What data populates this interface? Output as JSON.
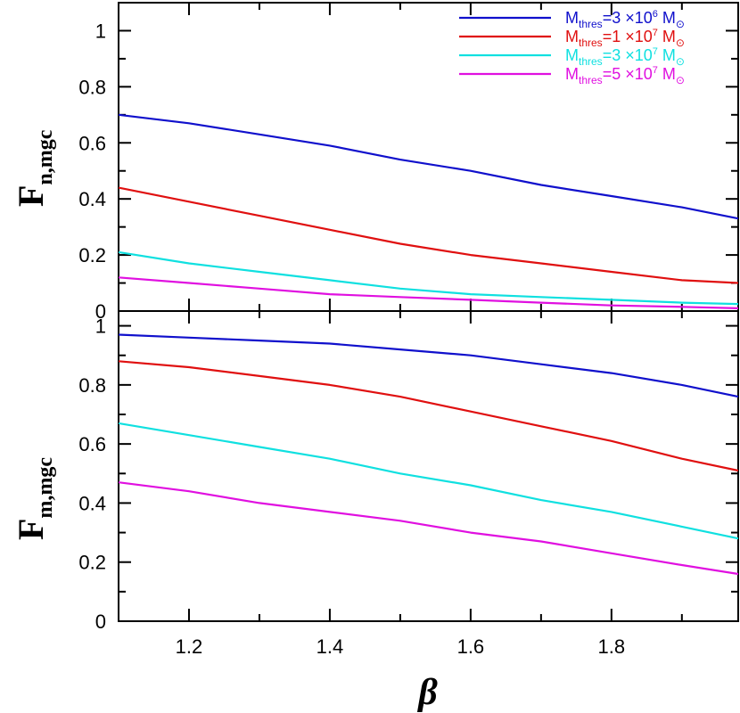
{
  "chart_data": [
    {
      "type": "line",
      "panel": "top",
      "ylabel": "F",
      "ylabel_sub": "n,mgc",
      "xlim": [
        1.1,
        1.98
      ],
      "ylim": [
        0,
        1.1
      ],
      "yticks": [
        0,
        0.2,
        0.4,
        0.6,
        0.8,
        1
      ],
      "ytick_labels": [
        "0",
        "0.2",
        "0.4",
        "0.6",
        "0.8",
        "1"
      ],
      "legend_position": "top-right",
      "legend": [
        {
          "base": "M",
          "sub": "thres",
          "mid": "=3 ×10",
          "sup": "6",
          "unit": "M",
          "unit_sub": "⊙",
          "color": "#1010cc"
        },
        {
          "base": "M",
          "sub": "thres",
          "mid": "=1 ×10",
          "sup": "7",
          "unit": "M",
          "unit_sub": "⊙",
          "color": "#e01010"
        },
        {
          "base": "M",
          "sub": "thres",
          "mid": "=3 ×10",
          "sup": "7",
          "unit": "M",
          "unit_sub": "⊙",
          "color": "#10e0e0"
        },
        {
          "base": "M",
          "sub": "thres",
          "mid": "=5 ×10",
          "sup": "7",
          "unit": "M",
          "unit_sub": "⊙",
          "color": "#e010e0"
        }
      ],
      "x": [
        1.1,
        1.2,
        1.3,
        1.4,
        1.5,
        1.6,
        1.7,
        1.8,
        1.9,
        1.98
      ],
      "series": [
        {
          "color": "#1010cc",
          "values": [
            0.7,
            0.67,
            0.63,
            0.59,
            0.54,
            0.5,
            0.45,
            0.41,
            0.37,
            0.33
          ]
        },
        {
          "color": "#e01010",
          "values": [
            0.44,
            0.39,
            0.34,
            0.29,
            0.24,
            0.2,
            0.17,
            0.14,
            0.11,
            0.1
          ]
        },
        {
          "color": "#10e0e0",
          "values": [
            0.21,
            0.17,
            0.14,
            0.11,
            0.08,
            0.06,
            0.05,
            0.04,
            0.03,
            0.025
          ]
        },
        {
          "color": "#e010e0",
          "values": [
            0.12,
            0.1,
            0.08,
            0.06,
            0.05,
            0.04,
            0.03,
            0.02,
            0.015,
            0.01
          ]
        }
      ]
    },
    {
      "type": "line",
      "panel": "bottom",
      "ylabel": "F",
      "ylabel_sub": "m,mgc",
      "xlabel": "β",
      "xlim": [
        1.1,
        1.98
      ],
      "ylim": [
        0,
        1.05
      ],
      "xticks": [
        1.2,
        1.4,
        1.6,
        1.8
      ],
      "xtick_labels": [
        "1.2",
        "1.4",
        "1.6",
        "1.8"
      ],
      "yticks": [
        0,
        0.2,
        0.4,
        0.6,
        0.8,
        1
      ],
      "ytick_labels": [
        "0",
        "0.2",
        "0.4",
        "0.6",
        "0.8",
        "1"
      ],
      "x": [
        1.1,
        1.2,
        1.3,
        1.4,
        1.5,
        1.6,
        1.7,
        1.8,
        1.9,
        1.98
      ],
      "series": [
        {
          "color": "#1010cc",
          "values": [
            0.97,
            0.96,
            0.95,
            0.94,
            0.92,
            0.9,
            0.87,
            0.84,
            0.8,
            0.76
          ]
        },
        {
          "color": "#e01010",
          "values": [
            0.88,
            0.86,
            0.83,
            0.8,
            0.76,
            0.71,
            0.66,
            0.61,
            0.55,
            0.51
          ]
        },
        {
          "color": "#10e0e0",
          "values": [
            0.67,
            0.63,
            0.59,
            0.55,
            0.5,
            0.46,
            0.41,
            0.37,
            0.32,
            0.28
          ]
        },
        {
          "color": "#e010e0",
          "values": [
            0.47,
            0.44,
            0.4,
            0.37,
            0.34,
            0.3,
            0.27,
            0.23,
            0.19,
            0.16
          ]
        }
      ]
    }
  ]
}
